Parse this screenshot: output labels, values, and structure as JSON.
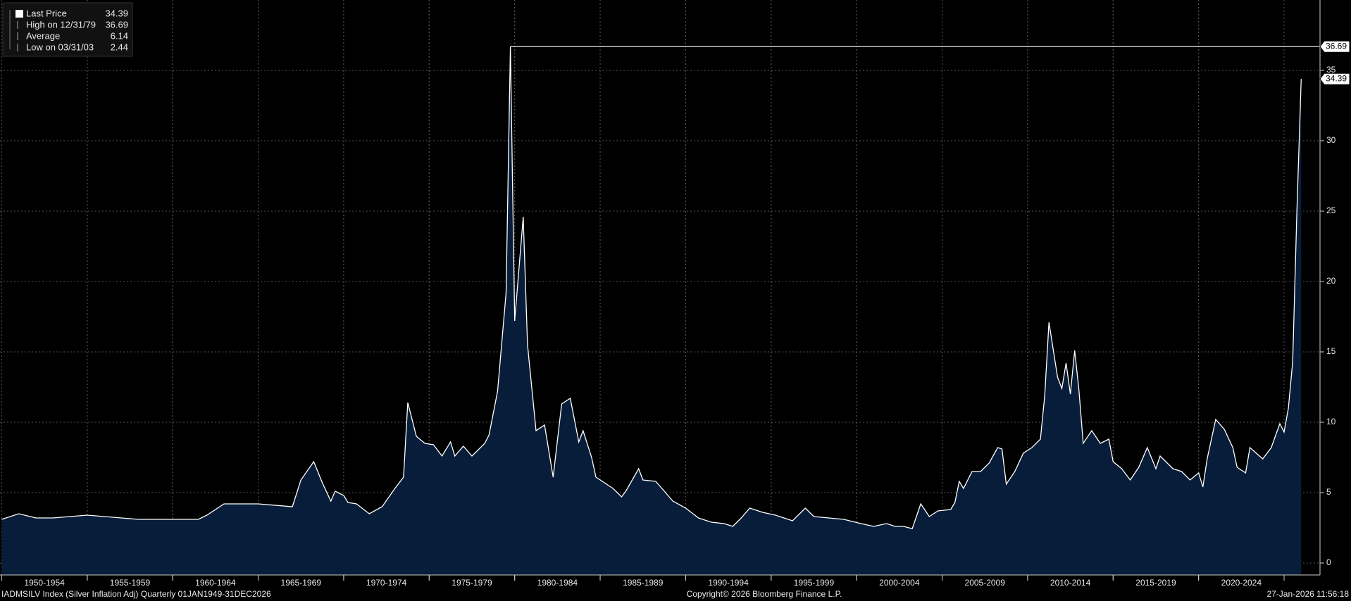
{
  "chart_data": {
    "type": "area",
    "footer_left": "IADMSILV Index (Silver Inflation Adj) Quarterly 01JAN1949-31DEC2026",
    "footer_center": "Copyright© 2026 Bloomberg Finance L.P.",
    "footer_right": "27-Jan-2026 11:56:18",
    "legend": [
      {
        "label": "Last Price",
        "value": 34.39
      },
      {
        "label": "High on 12/31/79",
        "value": 36.69
      },
      {
        "label": "Average",
        "value": 6.14
      },
      {
        "label": "Low on 03/31/03",
        "value": 2.44
      }
    ],
    "high_line": {
      "x": 1979.75,
      "value": 36.69
    },
    "last_label": 34.39,
    "series": [
      {
        "name": "Last Price",
        "color": "#ffffff",
        "fill": "#071d3a",
        "x": [
          1950.0,
          1951.0,
          1952.0,
          1953.0,
          1955.0,
          1957.0,
          1958.0,
          1961.5,
          1962.0,
          1963.0,
          1965.0,
          1967.0,
          1967.5,
          1968.25,
          1968.75,
          1969.25,
          1969.5,
          1970.0,
          1970.25,
          1970.75,
          1971.5,
          1972.25,
          1973.0,
          1973.5,
          1973.75,
          1974.25,
          1974.75,
          1975.25,
          1975.75,
          1976.25,
          1976.5,
          1977.0,
          1977.5,
          1978.25,
          1978.5,
          1979.0,
          1979.5,
          1979.75,
          1980.0,
          1980.5,
          1980.75,
          1981.25,
          1981.75,
          1982.25,
          1982.75,
          1983.25,
          1983.75,
          1984.0,
          1984.5,
          1984.75,
          1985.75,
          1986.25,
          1986.5,
          1987.25,
          1987.5,
          1988.25,
          1988.75,
          1989.25,
          1990.0,
          1990.75,
          1991.5,
          1992.25,
          1992.75,
          1993.25,
          1993.75,
          1994.5,
          1995.25,
          1996.25,
          1997.0,
          1997.5,
          1999.25,
          2000.25,
          2001.0,
          2001.75,
          2002.25,
          2002.75,
          2003.25,
          2003.75,
          2004.25,
          2004.75,
          2005.5,
          2005.75,
          2006.0,
          2006.25,
          2006.75,
          2007.25,
          2007.75,
          2008.25,
          2008.5,
          2008.75,
          2009.25,
          2009.75,
          2010.25,
          2010.75,
          2011.0,
          2011.25,
          2011.75,
          2012.0,
          2012.25,
          2012.5,
          2012.75,
          2013.0,
          2013.25,
          2013.75,
          2014.25,
          2014.75,
          2015.0,
          2015.5,
          2016.0,
          2016.5,
          2017.0,
          2017.5,
          2017.75,
          2018.5,
          2019.0,
          2019.5,
          2020.0,
          2020.25,
          2020.5,
          2021.0,
          2021.5,
          2022.0,
          2022.25,
          2022.75,
          2023.0,
          2023.75,
          2024.25,
          2024.75,
          2025.0,
          2025.25,
          2025.5,
          2025.75,
          2026.0
        ],
        "values": [
          3.1,
          3.5,
          3.2,
          3.2,
          3.4,
          3.2,
          3.1,
          3.1,
          3.4,
          4.2,
          4.2,
          4.0,
          5.9,
          7.2,
          5.7,
          4.4,
          5.1,
          4.8,
          4.3,
          4.2,
          3.5,
          4.0,
          5.3,
          6.1,
          11.4,
          9.0,
          8.5,
          8.4,
          7.6,
          8.6,
          7.6,
          8.3,
          7.6,
          8.5,
          9.1,
          12.2,
          19.2,
          36.69,
          17.2,
          24.6,
          15.5,
          9.4,
          9.8,
          6.1,
          11.3,
          11.7,
          8.6,
          9.4,
          7.5,
          6.1,
          5.3,
          4.7,
          5.1,
          6.7,
          5.9,
          5.8,
          5.1,
          4.4,
          3.9,
          3.2,
          2.9,
          2.8,
          2.6,
          3.2,
          3.9,
          3.6,
          3.4,
          3.0,
          3.9,
          3.3,
          3.1,
          2.8,
          2.6,
          2.8,
          2.6,
          2.6,
          2.44,
          4.2,
          3.3,
          3.7,
          3.8,
          4.3,
          5.8,
          5.3,
          6.5,
          6.5,
          7.1,
          8.2,
          8.1,
          5.6,
          6.5,
          7.8,
          8.2,
          8.8,
          11.9,
          17.1,
          13.2,
          12.4,
          14.2,
          12.0,
          15.1,
          12.3,
          8.5,
          9.4,
          8.5,
          8.8,
          7.2,
          6.7,
          5.9,
          6.8,
          8.2,
          6.7,
          7.6,
          6.7,
          6.5,
          5.9,
          6.4,
          5.4,
          7.4,
          10.2,
          9.5,
          8.2,
          6.8,
          6.4,
          8.2,
          7.4,
          8.2,
          9.9,
          9.3,
          11.0,
          14.3,
          25.0,
          34.39
        ]
      }
    ],
    "xlim": [
      1949.9,
      2027.1
    ],
    "x_bands": [
      {
        "label": "1950-1954",
        "start": 1950,
        "end": 1955
      },
      {
        "label": "1955-1959",
        "start": 1955,
        "end": 1960
      },
      {
        "label": "1960-1964",
        "start": 1960,
        "end": 1965
      },
      {
        "label": "1965-1969",
        "start": 1965,
        "end": 1970
      },
      {
        "label": "1970-1974",
        "start": 1970,
        "end": 1975
      },
      {
        "label": "1975-1979",
        "start": 1975,
        "end": 1980
      },
      {
        "label": "1980-1984",
        "start": 1980,
        "end": 1985
      },
      {
        "label": "1985-1989",
        "start": 1985,
        "end": 1990
      },
      {
        "label": "1990-1994",
        "start": 1990,
        "end": 1995
      },
      {
        "label": "1995-1999",
        "start": 1995,
        "end": 2000
      },
      {
        "label": "2000-2004",
        "start": 2000,
        "end": 2005
      },
      {
        "label": "2005-2009",
        "start": 2005,
        "end": 2010
      },
      {
        "label": "2010-2014",
        "start": 2010,
        "end": 2015
      },
      {
        "label": "2015-2019",
        "start": 2015,
        "end": 2020
      },
      {
        "label": "2020-2024",
        "start": 2020,
        "end": 2025
      }
    ],
    "ylim": [
      -0.85,
      40
    ],
    "yticks": [
      0,
      5,
      10,
      15,
      20,
      25,
      30,
      35
    ],
    "grid": true
  }
}
